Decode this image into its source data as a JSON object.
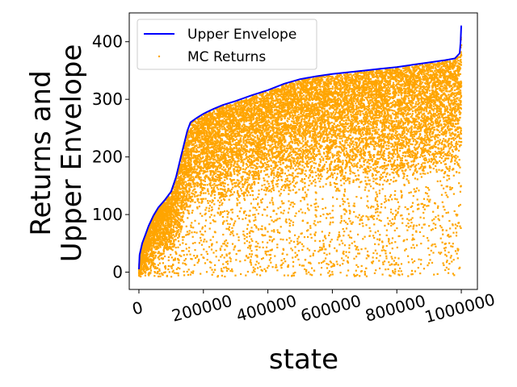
{
  "chart_data": {
    "type": "scatter",
    "title": "",
    "xlabel": "state",
    "ylabel_lines": [
      "Returns and",
      "Upper Envelope"
    ],
    "xlim": [
      -30000,
      1050000
    ],
    "ylim": [
      -30,
      450
    ],
    "x_ticks": [
      0,
      200000,
      400000,
      600000,
      800000,
      1000000
    ],
    "x_tick_labels": [
      "0",
      "200000",
      "400000",
      "600000",
      "800000",
      "1000000"
    ],
    "y_ticks": [
      0,
      100,
      200,
      300,
      400
    ],
    "y_tick_labels": [
      "0",
      "100",
      "200",
      "300",
      "400"
    ],
    "grid": false,
    "legend_position": "top-left",
    "series": [
      {
        "name": "Upper Envelope",
        "kind": "line",
        "color": "#0000ff",
        "points": [
          [
            0,
            5
          ],
          [
            2000,
            30
          ],
          [
            10000,
            50
          ],
          [
            20000,
            65
          ],
          [
            30000,
            80
          ],
          [
            45000,
            98
          ],
          [
            60000,
            112
          ],
          [
            80000,
            125
          ],
          [
            100000,
            140
          ],
          [
            115000,
            165
          ],
          [
            130000,
            200
          ],
          [
            140000,
            222
          ],
          [
            150000,
            245
          ],
          [
            160000,
            260
          ],
          [
            180000,
            268
          ],
          [
            200000,
            275
          ],
          [
            230000,
            283
          ],
          [
            260000,
            290
          ],
          [
            300000,
            297
          ],
          [
            350000,
            307
          ],
          [
            400000,
            316
          ],
          [
            450000,
            327
          ],
          [
            500000,
            335
          ],
          [
            550000,
            340
          ],
          [
            600000,
            344
          ],
          [
            650000,
            347
          ],
          [
            700000,
            350
          ],
          [
            750000,
            353
          ],
          [
            800000,
            356
          ],
          [
            850000,
            360
          ],
          [
            900000,
            364
          ],
          [
            950000,
            368
          ],
          [
            980000,
            371
          ],
          [
            995000,
            380
          ],
          [
            998000,
            400
          ],
          [
            1000000,
            428
          ]
        ]
      },
      {
        "name": "MC Returns",
        "kind": "scatter",
        "color": "#ffa500",
        "description_of_distribution": "dense orange cloud of points filling region between ~0 and the upper envelope across all states"
      }
    ]
  }
}
